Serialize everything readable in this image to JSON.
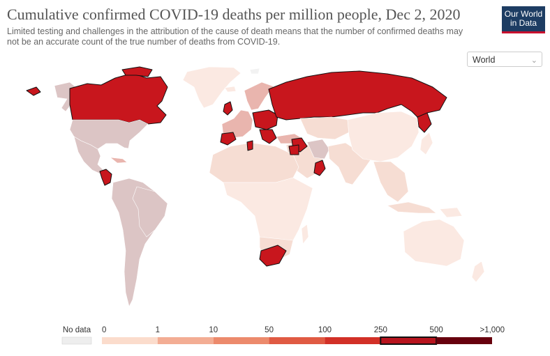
{
  "header": {
    "title": "Cumulative confirmed COVID-19 deaths per million people, Dec 2, 2020",
    "subtitle": "Limited testing and challenges in the attribution of the cause of death means that the number of confirmed deaths may not be an accurate count of the true number of deaths from COVID-19."
  },
  "logo": {
    "line1": "Our World",
    "line2": "in Data"
  },
  "region_select": {
    "value": "World"
  },
  "legend": {
    "nodata_label": "No data",
    "nodata_color": "#eeeeee",
    "bins": [
      {
        "from": "0",
        "to": "1",
        "color": "#fbdccc"
      },
      {
        "from": "1",
        "to": "10",
        "color": "#f3ad94"
      },
      {
        "from": "10",
        "to": "50",
        "color": "#ec8a6c"
      },
      {
        "from": "50",
        "to": "100",
        "color": "#e05a43"
      },
      {
        "from": "100",
        "to": "250",
        "color": "#d23027"
      },
      {
        "from": "250",
        "to": "500",
        "color": "#b8141e"
      },
      {
        "from": "500",
        "to": ">1,000",
        "color": "#67000d"
      }
    ],
    "tick_labels": [
      "0",
      "1",
      "10",
      "50",
      "100",
      "250",
      "500",
      ">1,000"
    ],
    "highlighted_bin": "250 to 500"
  },
  "map_colors": {
    "high": "#c8161d",
    "mid": "#e9b5ae",
    "muted": "#dcc5c5",
    "light": "#f6ddd3",
    "pale": "#fbe9e2",
    "nodata": "#f2f2f2"
  }
}
